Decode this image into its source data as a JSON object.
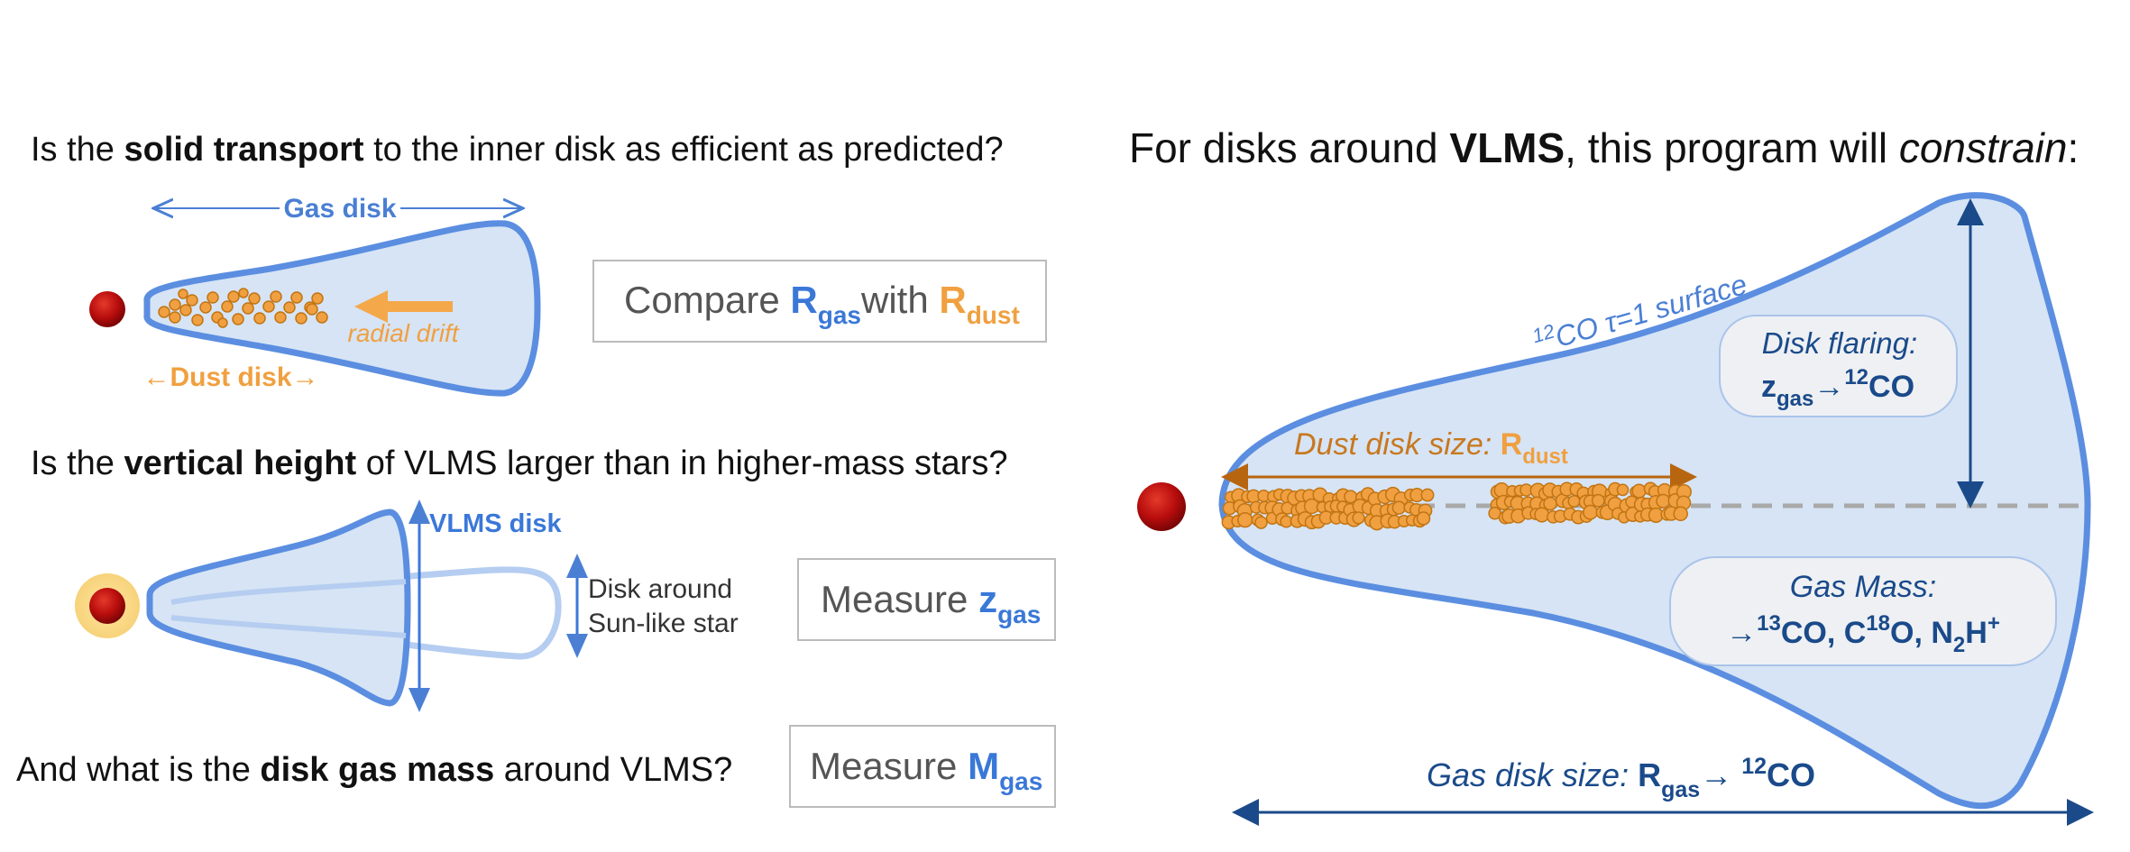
{
  "colors": {
    "gas_blue": "#4a7fd4",
    "disk_fill": "#d6e4f5",
    "dust_orange": "#f0a040",
    "star_red": "#b80d0d",
    "navy": "#1a4a8a",
    "dust_arrow_brown": "#b8650f"
  },
  "left": {
    "q1": {
      "pre": "Is the ",
      "bold": "solid transport",
      "post": " to the inner disk as efficient as predicted?"
    },
    "q1_gas_disk_label": "Gas disk",
    "q1_dust_disk_label": "←Dust disk→",
    "q1_drift_label": "radial drift",
    "q1_box": {
      "pre": "Compare ",
      "sym1": "R",
      "sub1": "gas",
      "mid": "with ",
      "sym2": "R",
      "sub2": "dust"
    },
    "q2": {
      "pre": "Is the ",
      "bold": "vertical height",
      "post": " of VLMS larger than in higher-mass stars?"
    },
    "q2_vlms_label": "VLMS disk",
    "q2_sun_label_line1": "Disk around",
    "q2_sun_label_line2": "Sun-like star",
    "q2_box": {
      "pre": "Measure ",
      "sym": "z",
      "sub": "gas"
    },
    "q3": {
      "pre": "And what is the ",
      "bold": "disk gas mass",
      "post": " around VLMS?"
    },
    "q3_box": {
      "pre": "Measure ",
      "sym": "M",
      "sub": "gas"
    }
  },
  "right": {
    "title": {
      "pre": "For disks around ",
      "bold": "VLMS",
      "mid": ", this program will ",
      "italic": "constrain",
      "post": ":"
    },
    "surface": {
      "sup": "12",
      "text": "CO τ=1 surface"
    },
    "flaring": {
      "title": "Disk flaring:",
      "sym": "z",
      "sub": "gas",
      "arrow": "→",
      "sup": "12",
      "mol": "CO"
    },
    "dust_size": {
      "text": "Dust disk size: ",
      "sym": "R",
      "sub": "dust"
    },
    "gas_mass": {
      "title": "Gas Mass:",
      "arrow": "→",
      "sup1": "13",
      "m1": "CO, C",
      "sup2": "18",
      "m2": "O, N",
      "sub3": "2",
      "m3": "H",
      "sup4": "+"
    },
    "gas_size": {
      "text": "Gas disk size: ",
      "sym": "R",
      "sub": "gas",
      "arrow": "→ ",
      "sup": "12",
      "mol": "CO"
    }
  }
}
